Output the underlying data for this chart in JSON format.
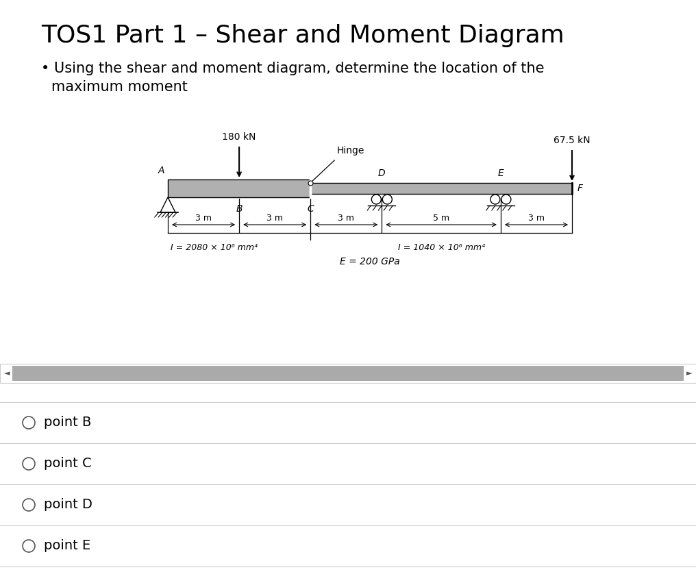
{
  "title": "TOS1 Part 1 – Shear and Moment Diagram",
  "bullet_line1": "• Using the shear and moment diagram, determine the location of the",
  "bullet_line2": "  maximum moment",
  "load1_label": "180 kN",
  "load2_label": "67.5 kN",
  "hinge_label": "Hinge",
  "I1_label": "I = 2080 × 10⁶ mm⁴",
  "I2_label": "I = 1040 × 10⁶ mm⁴",
  "E_label": "E = 200 GPa",
  "spans_labels": [
    "3 m",
    "3 m",
    "3 m",
    "5 m",
    "3 m"
  ],
  "point_labels": [
    "A",
    "B",
    "C",
    "D",
    "E",
    "F"
  ],
  "options": [
    "point B",
    "point C",
    "point D",
    "point E"
  ],
  "scrollbar_color": "#aaaaaa",
  "scrollbar_bg": "#e0e0e0",
  "title_fontsize": 26,
  "bullet_fontsize": 15,
  "options_fontsize": 14,
  "diag_fontsize": 9
}
